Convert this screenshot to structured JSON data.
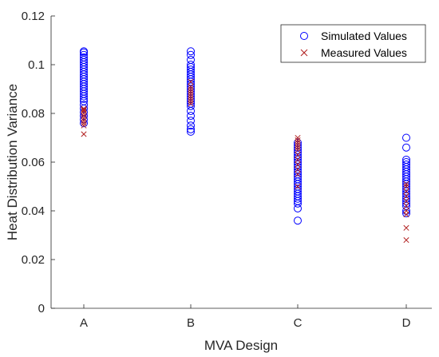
{
  "chart_data": {
    "type": "scatter",
    "xlabel": "MVA Design",
    "ylabel": "Heat Distribution Variance",
    "categories": [
      "A",
      "B",
      "C",
      "D"
    ],
    "ylim": [
      0,
      0.12
    ],
    "yticks": [
      0,
      0.02,
      0.04,
      0.06,
      0.08,
      0.1,
      0.12
    ],
    "ytick_labels": [
      "0",
      "0.02",
      "0.04",
      "0.06",
      "0.08",
      "0.1",
      "0.12"
    ],
    "grid": false,
    "legend_position": "top-right",
    "series": [
      {
        "name": "Simulated Values",
        "marker": "circle",
        "color": "#0000ff",
        "points": [
          {
            "category": "A",
            "values": [
              0.076,
              0.0775,
              0.079,
              0.0805,
              0.082,
              0.0835,
              0.085,
              0.086,
              0.087,
              0.088,
              0.089,
              0.09,
              0.091,
              0.092,
              0.093,
              0.094,
              0.095,
              0.096,
              0.097,
              0.098,
              0.099,
              0.1,
              0.101,
              0.102,
              0.103,
              0.104,
              0.105,
              0.1055
            ]
          },
          {
            "category": "B",
            "values": [
              0.0725,
              0.0735,
              0.075,
              0.077,
              0.079,
              0.081,
              0.083,
              0.084,
              0.085,
              0.086,
              0.087,
              0.088,
              0.089,
              0.09,
              0.091,
              0.092,
              0.093,
              0.094,
              0.095,
              0.096,
              0.097,
              0.098,
              0.099,
              0.1,
              0.102,
              0.104,
              0.1055
            ]
          },
          {
            "category": "C",
            "values": [
              0.036,
              0.041,
              0.043,
              0.044,
              0.045,
              0.046,
              0.047,
              0.048,
              0.049,
              0.05,
              0.051,
              0.052,
              0.053,
              0.054,
              0.055,
              0.056,
              0.057,
              0.058,
              0.059,
              0.06,
              0.061,
              0.062,
              0.063,
              0.064,
              0.065,
              0.066,
              0.067,
              0.068
            ]
          },
          {
            "category": "D",
            "values": [
              0.039,
              0.04,
              0.042,
              0.043,
              0.044,
              0.045,
              0.046,
              0.047,
              0.048,
              0.049,
              0.05,
              0.051,
              0.052,
              0.053,
              0.054,
              0.055,
              0.056,
              0.057,
              0.058,
              0.059,
              0.06,
              0.061,
              0.066,
              0.07
            ]
          }
        ]
      },
      {
        "name": "Measured Values",
        "marker": "x",
        "color": "#b22222",
        "points": [
          {
            "category": "A",
            "values": [
              0.0715,
              0.075,
              0.076,
              0.077,
              0.078,
              0.079,
              0.08,
              0.081,
              0.0815,
              0.082
            ]
          },
          {
            "category": "B",
            "values": [
              0.084,
              0.085,
              0.086,
              0.087,
              0.088,
              0.089,
              0.09,
              0.091,
              0.093
            ]
          },
          {
            "category": "C",
            "values": [
              0.05,
              0.055,
              0.057,
              0.059,
              0.061,
              0.063,
              0.065,
              0.066,
              0.067,
              0.068,
              0.069,
              0.07
            ]
          },
          {
            "category": "D",
            "values": [
              0.028,
              0.033,
              0.0385,
              0.04,
              0.042,
              0.044,
              0.046,
              0.048,
              0.05,
              0.051
            ]
          }
        ]
      }
    ]
  }
}
